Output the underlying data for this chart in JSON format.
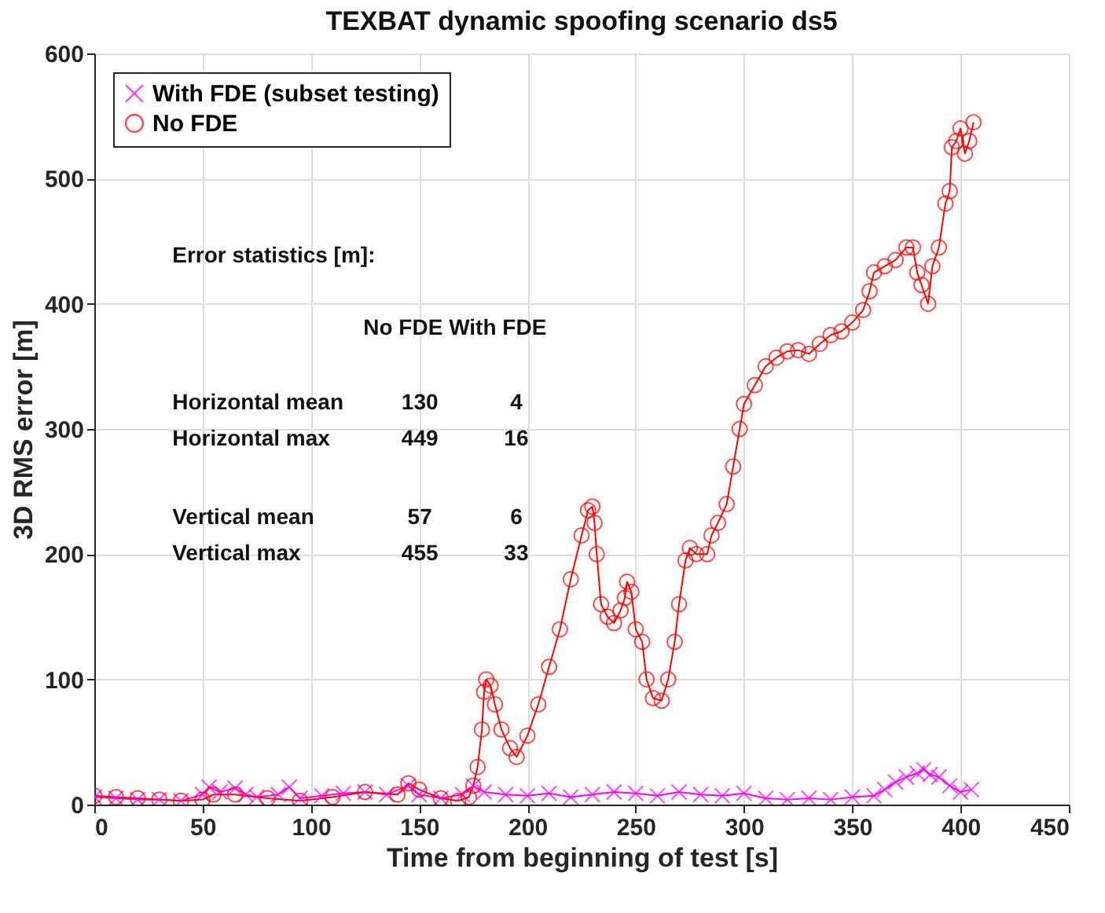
{
  "chart_data": {
    "type": "line",
    "title": "TEXBAT dynamic spoofing scenario ds5",
    "xlabel": "Time from beginning of test [s]",
    "ylabel": "3D RMS error [m]",
    "xlim": [
      0,
      450
    ],
    "xticks": [
      0,
      50,
      100,
      150,
      200,
      250,
      300,
      350,
      400,
      450
    ],
    "ylim": [
      0,
      600
    ],
    "yticks": [
      0,
      100,
      200,
      300,
      400,
      500,
      600
    ],
    "grid": true,
    "legend": "top left",
    "annotations": [
      "Error statistics [m]:",
      "No FDE  With FDE",
      "Horizontal mean  130  4",
      "Horizontal max  449  16",
      "Vertical mean  57  6",
      "Vertical max  455  33"
    ],
    "series": [
      {
        "name": "With FDE (subset testing)",
        "color": "#ff00ff",
        "marker": "cross",
        "x": [
          0,
          10,
          20,
          30,
          40,
          50,
          53,
          58,
          65,
          70,
          75,
          85,
          90,
          95,
          105,
          115,
          125,
          135,
          145,
          150,
          160,
          170,
          175,
          180,
          190,
          200,
          210,
          220,
          230,
          240,
          250,
          260,
          270,
          280,
          290,
          300,
          310,
          320,
          330,
          340,
          350,
          360,
          365,
          370,
          375,
          380,
          383,
          386,
          390,
          395,
          400,
          405
        ],
        "values": [
          6,
          5,
          4,
          4,
          3,
          8,
          14,
          10,
          13,
          8,
          6,
          8,
          14,
          5,
          7,
          9,
          10,
          8,
          15,
          8,
          5,
          8,
          15,
          10,
          8,
          7,
          9,
          6,
          8,
          10,
          9,
          7,
          10,
          8,
          7,
          9,
          5,
          4,
          5,
          4,
          6,
          7,
          12,
          18,
          22,
          25,
          28,
          24,
          22,
          15,
          10,
          12
        ]
      },
      {
        "name": "No FDE",
        "color": "#ff0000",
        "marker": "circle",
        "x": [
          0,
          10,
          20,
          30,
          40,
          50,
          55,
          65,
          80,
          95,
          110,
          125,
          140,
          145,
          150,
          160,
          168,
          173,
          175,
          177,
          179,
          180,
          181,
          183,
          185,
          188,
          192,
          195,
          200,
          205,
          210,
          215,
          220,
          225,
          228,
          230,
          231,
          232,
          234,
          237,
          240,
          243,
          245,
          246,
          248,
          250,
          253,
          255,
          258,
          262,
          265,
          268,
          270,
          273,
          275,
          278,
          283,
          285,
          288,
          292,
          295,
          298,
          300,
          305,
          310,
          315,
          320,
          325,
          330,
          335,
          340,
          345,
          350,
          355,
          358,
          360,
          365,
          370,
          375,
          378,
          380,
          382,
          385,
          387,
          390,
          393,
          395,
          396,
          398,
          400,
          402,
          404,
          406
        ],
        "values": [
          7,
          6,
          5,
          4,
          3,
          4,
          8,
          8,
          5,
          3,
          6,
          10,
          8,
          17,
          12,
          5,
          3,
          6,
          15,
          30,
          60,
          90,
          100,
          95,
          80,
          60,
          45,
          38,
          55,
          80,
          110,
          140,
          180,
          215,
          235,
          238,
          225,
          200,
          160,
          150,
          145,
          155,
          165,
          178,
          170,
          140,
          130,
          100,
          85,
          83,
          100,
          130,
          160,
          195,
          205,
          200,
          200,
          215,
          225,
          240,
          270,
          300,
          320,
          335,
          350,
          357,
          362,
          363,
          360,
          368,
          375,
          378,
          385,
          395,
          410,
          425,
          430,
          435,
          445,
          445,
          425,
          415,
          400,
          430,
          445,
          480,
          490,
          525,
          530,
          540,
          520,
          530,
          545
        ]
      }
    ]
  }
}
